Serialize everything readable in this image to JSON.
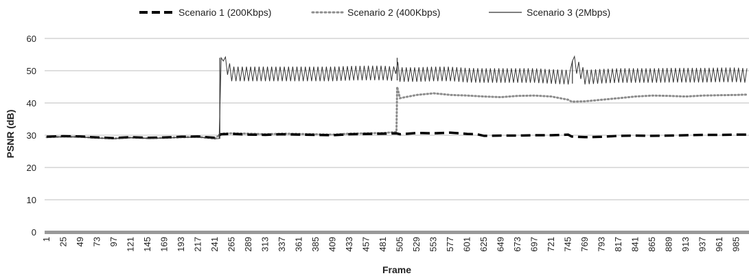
{
  "chart_data": {
    "type": "line",
    "title": "",
    "xlabel": "Frame",
    "ylabel": "PSNR (dB)",
    "xlim": [
      1,
      1000
    ],
    "ylim": [
      0,
      60
    ],
    "grid": true,
    "legend_position": "top",
    "x_ticks": [
      "1",
      "25",
      "49",
      "73",
      "97",
      "121",
      "145",
      "169",
      "193",
      "217",
      "241",
      "265",
      "289",
      "313",
      "337",
      "361",
      "385",
      "409",
      "433",
      "457",
      "481",
      "505",
      "529",
      "553",
      "577",
      "601",
      "625",
      "649",
      "673",
      "697",
      "721",
      "745",
      "769",
      "793",
      "817",
      "841",
      "865",
      "889",
      "913",
      "937",
      "961",
      "985"
    ],
    "y_ticks": [
      "0",
      "10",
      "20",
      "30",
      "40",
      "50",
      "60"
    ],
    "series": [
      {
        "name": "Scenario 1 (200Kbps)",
        "style": "dashed-thick",
        "color": "#000000",
        "x": [
          1,
          25,
          49,
          73,
          97,
          121,
          145,
          169,
          193,
          217,
          241,
          250,
          265,
          289,
          313,
          337,
          361,
          385,
          409,
          433,
          457,
          481,
          500,
          505,
          529,
          553,
          577,
          601,
          615,
          625,
          649,
          673,
          697,
          721,
          745,
          750,
          769,
          793,
          817,
          841,
          865,
          889,
          913,
          937,
          961,
          985,
          1000
        ],
        "y": [
          29.5,
          29.7,
          29.6,
          29.3,
          29.1,
          29.4,
          29.2,
          29.3,
          29.5,
          29.6,
          29.2,
          30.3,
          30.4,
          30.2,
          30.1,
          30.3,
          30.2,
          30.1,
          30.0,
          30.3,
          30.4,
          30.5,
          30.6,
          30.3,
          30.7,
          30.6,
          30.8,
          30.4,
          30.3,
          29.8,
          29.9,
          29.9,
          30.0,
          30.0,
          30.2,
          29.6,
          29.4,
          29.5,
          29.8,
          29.9,
          29.8,
          29.9,
          30.0,
          30.1,
          30.1,
          30.2,
          30.2
        ]
      },
      {
        "name": "Scenario 2 (400Kbps)",
        "style": "dotted",
        "color": "#8c8c8c",
        "x": [
          1,
          25,
          49,
          73,
          97,
          121,
          145,
          169,
          193,
          217,
          241,
          250,
          265,
          289,
          313,
          337,
          361,
          385,
          409,
          433,
          457,
          481,
          500,
          501,
          505,
          529,
          553,
          577,
          601,
          625,
          649,
          673,
          697,
          721,
          745,
          750,
          769,
          793,
          817,
          841,
          865,
          889,
          913,
          937,
          961,
          985,
          1000
        ],
        "y": [
          29.4,
          29.6,
          29.5,
          29.2,
          29.0,
          29.3,
          29.1,
          29.2,
          29.4,
          29.5,
          29.0,
          30.5,
          30.6,
          30.5,
          30.3,
          30.5,
          30.4,
          30.3,
          30.2,
          30.5,
          30.6,
          30.7,
          31.0,
          45.0,
          41.5,
          42.5,
          43.0,
          42.5,
          42.3,
          42.0,
          41.8,
          42.2,
          42.3,
          42.0,
          41.0,
          40.4,
          40.5,
          41.0,
          41.5,
          42.0,
          42.3,
          42.2,
          42.0,
          42.3,
          42.4,
          42.5,
          42.6
        ]
      },
      {
        "name": "Scenario 3 (2Mbps)",
        "style": "solid",
        "color": "#333333",
        "x": [
          1,
          25,
          49,
          73,
          97,
          121,
          145,
          169,
          193,
          217,
          241,
          248,
          250,
          265,
          289,
          313,
          337,
          361,
          385,
          409,
          433,
          457,
          481,
          500,
          501,
          505,
          529,
          553,
          577,
          601,
          625,
          649,
          673,
          697,
          721,
          745,
          750,
          751,
          769,
          793,
          817,
          841,
          865,
          889,
          913,
          937,
          961,
          985,
          1000
        ],
        "y": [
          29.3,
          29.5,
          29.4,
          29.1,
          28.9,
          29.2,
          29.0,
          29.1,
          29.3,
          29.4,
          28.9,
          29.0,
          54.0,
          49.0,
          49.0,
          49.0,
          49.0,
          49.0,
          49.0,
          49.0,
          49.2,
          49.3,
          49.3,
          49.0,
          54.0,
          48.8,
          48.8,
          49.0,
          49.0,
          48.6,
          48.5,
          48.5,
          48.5,
          48.5,
          48.2,
          48.0,
          48.0,
          53.0,
          48.0,
          48.3,
          48.5,
          48.5,
          48.5,
          48.6,
          48.6,
          48.6,
          48.7,
          48.7,
          48.5
        ],
        "oscillation_amplitude_after_frame_250": 5
      }
    ]
  }
}
